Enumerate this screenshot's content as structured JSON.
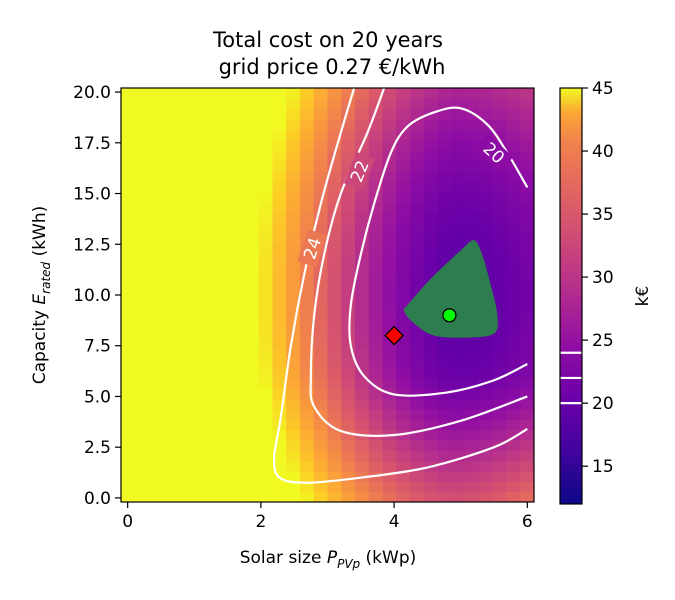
{
  "chart_data": {
    "type": "heatmap",
    "title": "Total cost on 20 years",
    "subtitle": "grid price 0.27 €/kWh",
    "xlabel": {
      "text": "Solar size ",
      "var": "P",
      "sub": "PVp",
      "unit": " (kWp)"
    },
    "ylabel": {
      "text": "Capacity ",
      "var": "E",
      "sub": "rated",
      "unit": " (kWh)"
    },
    "xlim": [
      -0.1,
      6.1
    ],
    "ylim": [
      -0.2,
      20.2
    ],
    "xticks": [
      0,
      2,
      4,
      6
    ],
    "xtick_labels": [
      "0",
      "2",
      "4",
      "6"
    ],
    "yticks": [
      0,
      2.5,
      5,
      7.5,
      10,
      12.5,
      15,
      17.5,
      20
    ],
    "ytick_labels": [
      "0.0",
      "2.5",
      "5.0",
      "7.5",
      "10.0",
      "12.5",
      "15.0",
      "17.5",
      "20.0"
    ],
    "colormap": "plasma",
    "colorbar": {
      "label": "k€",
      "range": [
        12,
        45
      ],
      "ticks": [
        15,
        20,
        25,
        30,
        35,
        40,
        45
      ],
      "tick_labels": [
        "15",
        "20",
        "25",
        "30",
        "35",
        "40",
        "45"
      ],
      "contour_lines": [
        20,
        22,
        24
      ]
    },
    "contours": [
      {
        "level": 24,
        "label": "24",
        "points": [
          [
            3.4,
            20.2
          ],
          [
            3.2,
            18
          ],
          [
            2.9,
            14.5
          ],
          [
            2.65,
            11
          ],
          [
            2.45,
            7.5
          ],
          [
            2.3,
            4
          ],
          [
            2.2,
            2
          ],
          [
            2.28,
            1.0
          ],
          [
            2.7,
            0.75
          ],
          [
            3.5,
            1.0
          ],
          [
            4.5,
            1.5
          ],
          [
            5.5,
            2.5
          ],
          [
            6.0,
            3.4
          ]
        ]
      },
      {
        "level": 22,
        "label": "22",
        "points": [
          [
            3.85,
            20.2
          ],
          [
            3.6,
            18
          ],
          [
            3.2,
            15
          ],
          [
            2.95,
            12
          ],
          [
            2.8,
            9
          ],
          [
            2.75,
            6
          ],
          [
            2.8,
            4.5
          ],
          [
            3.2,
            3.3
          ],
          [
            4.0,
            3.1
          ],
          [
            5.0,
            3.8
          ],
          [
            6.0,
            5.0
          ]
        ]
      },
      {
        "level": 20,
        "label": "20",
        "points": [
          [
            6.0,
            15.3
          ],
          [
            5.7,
            17
          ],
          [
            5.4,
            18.4
          ],
          [
            5.0,
            19.2
          ],
          [
            4.6,
            19.0
          ],
          [
            4.2,
            18.3
          ],
          [
            3.95,
            17
          ],
          [
            3.7,
            14.5
          ],
          [
            3.5,
            12
          ],
          [
            3.35,
            9.5
          ],
          [
            3.35,
            7.5
          ],
          [
            3.55,
            6.0
          ],
          [
            4.0,
            5.1
          ],
          [
            4.8,
            5.2
          ],
          [
            5.5,
            5.8
          ],
          [
            6.0,
            6.6
          ]
        ]
      }
    ],
    "feasible_region": [
      [
        4.2,
        9.5
      ],
      [
        4.55,
        10.8
      ],
      [
        5.0,
        12.2
      ],
      [
        5.2,
        12.7
      ],
      [
        5.32,
        12.0
      ],
      [
        5.45,
        10.5
      ],
      [
        5.55,
        9.0
      ],
      [
        5.5,
        8.1
      ],
      [
        5.1,
        7.9
      ],
      [
        4.6,
        8.0
      ],
      [
        4.3,
        8.6
      ],
      [
        4.15,
        9.2
      ]
    ],
    "markers": [
      {
        "shape": "diamond",
        "x": 4.0,
        "y": 8.0,
        "color": "#ff0000"
      },
      {
        "shape": "circle",
        "x": 4.83,
        "y": 9.0,
        "color": "#00ff00"
      }
    ],
    "colors": {
      "feasible_region": "#2e7d4f",
      "contour": "#ffffff"
    }
  }
}
